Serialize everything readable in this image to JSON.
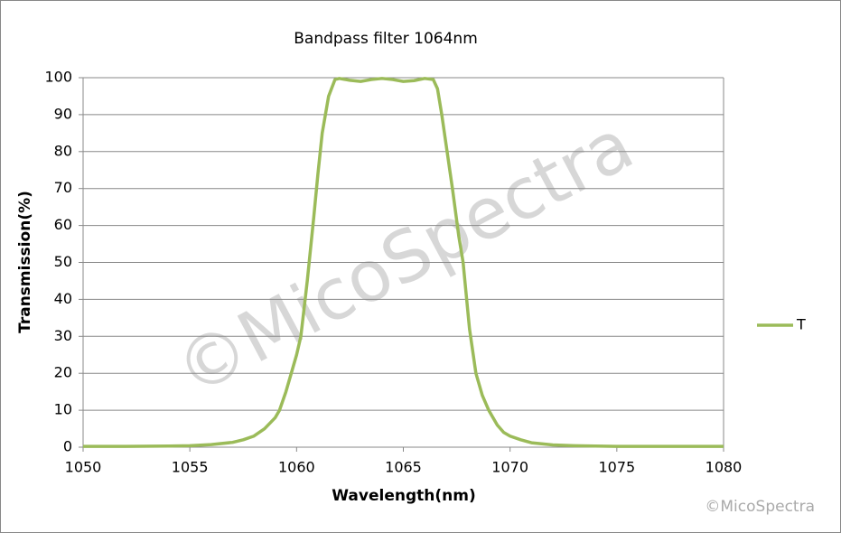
{
  "chart_data": {
    "type": "line",
    "title": "Bandpass filter 1064nm",
    "x_label": "Wavelength(nm)",
    "y_label": "Transmission(%)",
    "x": [
      1050,
      1052,
      1054,
      1055,
      1056,
      1057,
      1057.5,
      1058,
      1058.5,
      1059,
      1059.2,
      1059.5,
      1059.8,
      1060,
      1060.2,
      1060.5,
      1060.8,
      1061,
      1061.2,
      1061.5,
      1061.8,
      1062,
      1062.5,
      1063,
      1063.5,
      1064,
      1064.5,
      1065,
      1065.5,
      1066,
      1066.4,
      1066.6,
      1066.8,
      1067,
      1067.3,
      1067.6,
      1067.8,
      1068.1,
      1068.4,
      1068.7,
      1069,
      1069.4,
      1069.7,
      1070,
      1070.5,
      1071,
      1072,
      1073,
      1075,
      1080
    ],
    "series": [
      {
        "name": "T",
        "color": "#9bbb59",
        "values": [
          0.2,
          0.2,
          0.3,
          0.4,
          0.7,
          1.3,
          2,
          3,
          5,
          8,
          10,
          15,
          21,
          25,
          30,
          45,
          62,
          74,
          85,
          95,
          99.5,
          99.8,
          99.3,
          99,
          99.5,
          99.8,
          99.5,
          99,
          99.2,
          99.8,
          99.5,
          97,
          90,
          82,
          70,
          57,
          50,
          32,
          20,
          14,
          10,
          6,
          4,
          3,
          2,
          1.2,
          0.6,
          0.4,
          0.2,
          0.2
        ]
      }
    ],
    "xlim": [
      1050,
      1080
    ],
    "xticks": [
      1050,
      1055,
      1060,
      1065,
      1070,
      1075,
      1080
    ],
    "ylim": [
      0,
      100
    ],
    "yticks": [
      0,
      10,
      20,
      30,
      40,
      50,
      60,
      70,
      80,
      90,
      100
    ],
    "grid": true,
    "legend": "right",
    "watermark": "©MicoSpectra",
    "credit": "©MicoSpectra"
  }
}
